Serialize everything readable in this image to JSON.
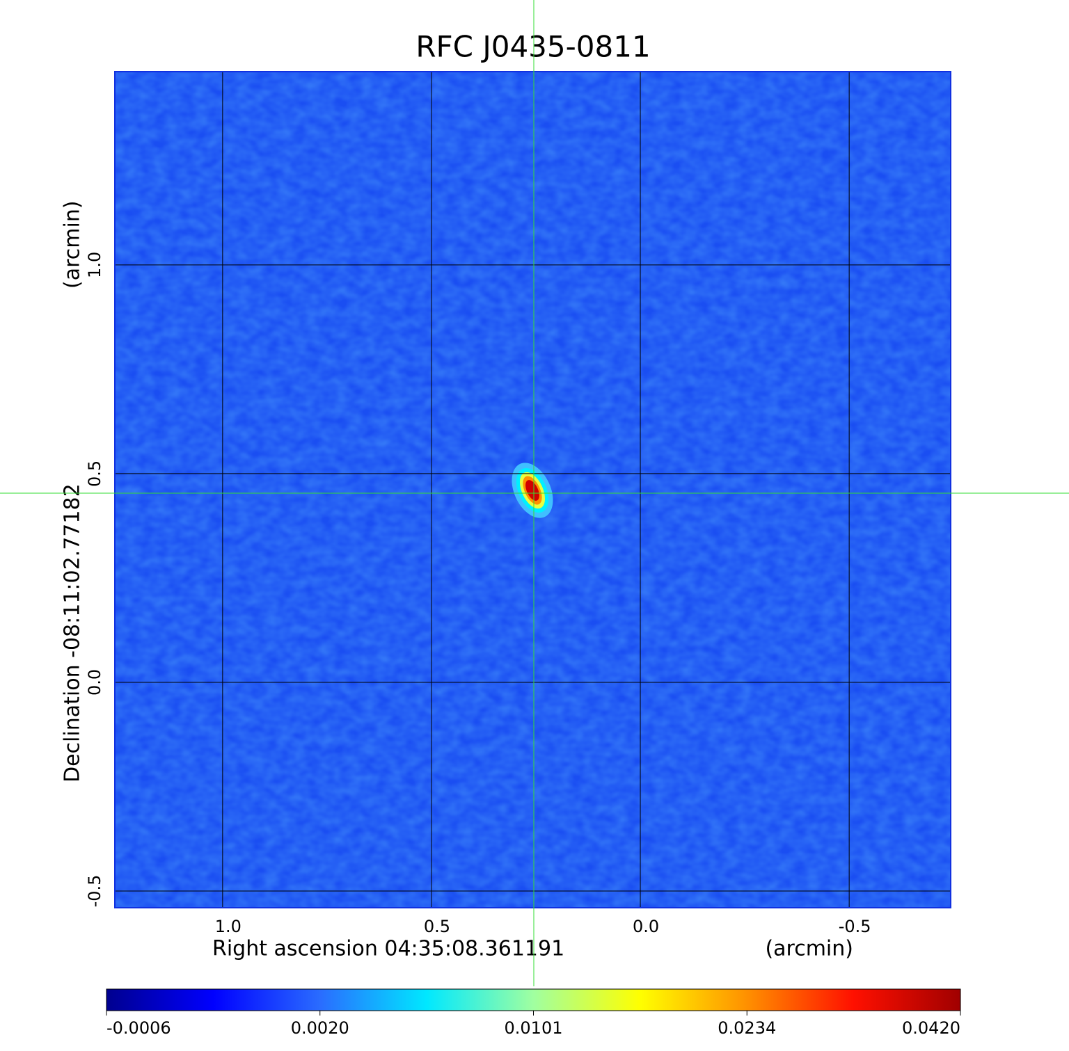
{
  "chart_data": {
    "type": "image",
    "title": "RFC J0435-0811",
    "title_color": "#1a1ad0",
    "x_label": "Right ascension  04:35:08.361191",
    "x_unit": "(arcmin)",
    "y_label": "Declination  -08:11:02.77182",
    "y_unit": "(arcmin)",
    "xlim": [
      1.258,
      -0.743
    ],
    "ylim": [
      -0.54,
      1.463
    ],
    "xticks": [
      {
        "value": 1,
        "label": "1.0"
      },
      0.5,
      {
        "value": 0,
        "label": "0.0"
      },
      -0.5
    ],
    "yticks": [
      -0.5,
      {
        "value": 0,
        "label": "0.0"
      },
      0.5,
      {
        "value": 1,
        "label": "1.0"
      }
    ],
    "grid": true,
    "background_color": "#1a4ef2",
    "crosshair_color": "#33dd33",
    "colorbar": {
      "ticks": [
        -0.0006,
        {
          "value": 0.002,
          "label": "0.0020"
        },
        0.0101,
        0.0234,
        {
          "value": 0.042,
          "label": "0.0420"
        }
      ],
      "colors": [
        "#00008f",
        "#0000ff",
        "#2a6cff",
        "#00e8ff",
        "#a0ffa0",
        "#ffff00",
        "#ff9000",
        "#ff1000",
        "#a00000"
      ]
    }
  }
}
